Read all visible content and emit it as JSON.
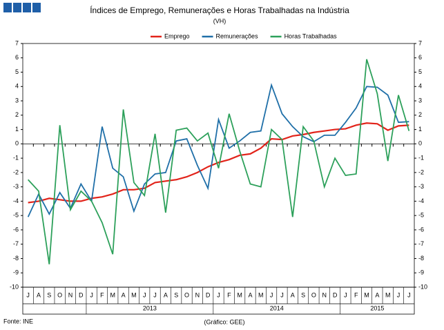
{
  "chart_data": {
    "type": "line",
    "title": "Índices de Emprego, Remunerações e Horas Trabalhadas  na Indústria",
    "subtitle": "(VH)",
    "source": "Fonte: INE",
    "credit": "(Gráfico: GEE)",
    "categories": [
      "J",
      "A",
      "S",
      "O",
      "N",
      "D",
      "J",
      "F",
      "M",
      "A",
      "M",
      "J",
      "J",
      "A",
      "S",
      "O",
      "N",
      "D",
      "J",
      "F",
      "M",
      "A",
      "M",
      "J",
      "J",
      "A",
      "S",
      "O",
      "N",
      "D",
      "J",
      "F",
      "M",
      "A",
      "M",
      "J",
      "J"
    ],
    "year_labels": [
      {
        "label": "2013",
        "from": 6,
        "to": 17
      },
      {
        "label": "2014",
        "from": 18,
        "to": 29
      },
      {
        "label": "2015",
        "from": 30,
        "to": 36
      }
    ],
    "series": [
      {
        "name": "Emprego",
        "color": "#e2231a",
        "values": [
          -4.1,
          -4.0,
          -3.8,
          -3.9,
          -4.0,
          -4.0,
          -3.8,
          -3.7,
          -3.5,
          -3.2,
          -3.2,
          -3.1,
          -2.7,
          -2.6,
          -2.5,
          -2.3,
          -2.0,
          -1.6,
          -1.3,
          -1.1,
          -0.8,
          -0.7,
          -0.3,
          0.35,
          0.3,
          0.55,
          0.65,
          0.8,
          0.9,
          1.0,
          1.05,
          1.3,
          1.45,
          1.4,
          0.95,
          1.25,
          1.3
        ]
      },
      {
        "name": "Remunerações",
        "color": "#1f6fa8",
        "values": [
          -5.1,
          -3.5,
          -4.9,
          -3.4,
          -4.5,
          -2.8,
          -4.0,
          1.2,
          -1.7,
          -2.3,
          -4.7,
          -2.8,
          -2.1,
          -2.0,
          0.2,
          0.35,
          -1.5,
          -3.1,
          1.7,
          -0.3,
          0.2,
          0.8,
          0.9,
          4.1,
          2.1,
          1.2,
          0.5,
          0.15,
          0.6,
          0.6,
          1.5,
          2.5,
          4.0,
          3.95,
          3.4,
          1.5,
          1.55
        ]
      },
      {
        "name": "Horas Trabalhadas",
        "color": "#2ca05a",
        "values": [
          -2.5,
          -3.3,
          -8.4,
          1.3,
          -4.6,
          -3.3,
          -4.0,
          -5.5,
          -7.7,
          2.4,
          -2.7,
          -3.6,
          0.7,
          -4.8,
          0.95,
          1.1,
          0.2,
          0.75,
          -1.7,
          2.1,
          -0.5,
          -2.8,
          -3.0,
          1.0,
          0.3,
          -5.1,
          1.2,
          0.2,
          -3.0,
          -1.0,
          -2.2,
          -2.1,
          5.9,
          3.5,
          -1.2,
          3.4,
          0.9
        ]
      }
    ],
    "ylim": [
      -10,
      7
    ],
    "yticks": [
      -10,
      -9,
      -8,
      -7,
      -6,
      -5,
      -4,
      -3,
      -2,
      -1,
      0,
      1,
      2,
      3,
      4,
      5,
      6,
      7
    ],
    "y2lim": [
      -10,
      7
    ],
    "y2ticks": [
      -10,
      -9,
      -8,
      -7,
      -6,
      -5,
      -4,
      -3,
      -2,
      -1,
      0,
      1,
      2,
      3,
      4,
      5,
      6,
      7
    ],
    "legend": "top"
  }
}
